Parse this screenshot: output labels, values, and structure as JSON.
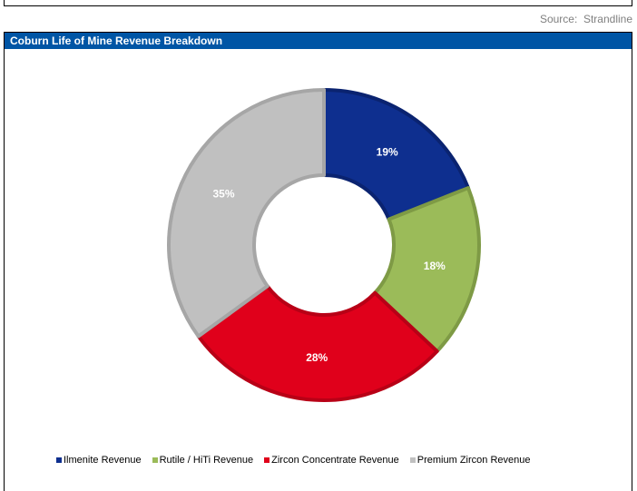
{
  "source_note": "Source:  Strandline",
  "panel": {
    "title": "Coburn Life of Mine Revenue Breakdown"
  },
  "chart_data": {
    "type": "pie",
    "variant": "donut",
    "title": "Coburn Life of Mine Revenue Breakdown",
    "categories": [
      "Ilmenite Revenue",
      "Rutile / HiTi Revenue",
      "Zircon Concentrate Revenue",
      "Premium Zircon Revenue"
    ],
    "values": [
      19,
      18,
      28,
      35
    ],
    "labels": [
      "19%",
      "18%",
      "28%",
      "35%"
    ],
    "colors": [
      "#0e2f8f",
      "#9bbb59",
      "#e0001b",
      "#c0c0c0"
    ],
    "legend_position": "bottom"
  }
}
